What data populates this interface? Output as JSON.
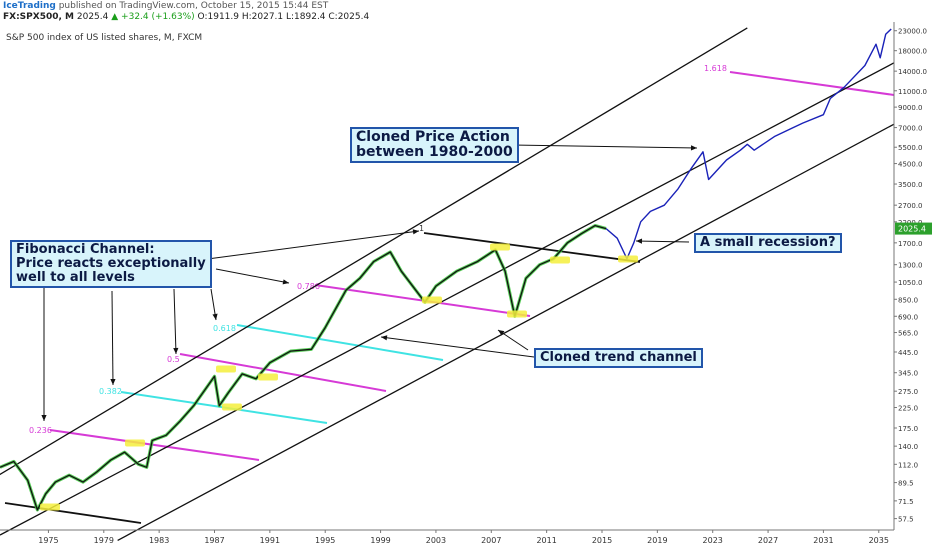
{
  "header": {
    "brand": "IceTrading",
    "published": " published on TradingView.com, October 15, 2015 15:44 EST",
    "symbol": "FX:SPX500, M",
    "last": "2025.4",
    "change": "+32.4 (+1.63%)",
    "ohlc": "O:1911.9 H:2027.1 L:1892.4 C:2025.4"
  },
  "chart_data": {
    "type": "line",
    "title": "S&P 500 index of US listed shares, M, FXCM",
    "y_scale": "log",
    "x_tick_labels": [
      "1975",
      "1979",
      "1983",
      "1987",
      "1991",
      "1995",
      "1999",
      "2003",
      "2007",
      "2011",
      "2015",
      "2019",
      "2023",
      "2027",
      "2031",
      "2035"
    ],
    "y_tick_labels": [
      "23000.0",
      "18000.0",
      "14000.0",
      "11000.0",
      "9000.0",
      "7000.0",
      "5500.0",
      "4500.0",
      "3500.0",
      "2700.0",
      "2200.0",
      "1700.0",
      "1300.0",
      "1050.0",
      "850.0",
      "690.0",
      "565.0",
      "445.0",
      "345.0",
      "275.0",
      "225.0",
      "175.0",
      "140.0",
      "112.0",
      "89.5",
      "71.5",
      "57.5"
    ],
    "last_price_label": "2025.4",
    "series": [
      {
        "color": "#111111",
        "points": [
          [
            1972.0,
            108
          ],
          [
            1973.0,
            116
          ],
          [
            1974.0,
            92
          ],
          [
            1974.7,
            64
          ],
          [
            1975.3,
            78
          ],
          [
            1976.0,
            90
          ],
          [
            1977.0,
            98
          ],
          [
            1978.0,
            90
          ],
          [
            1979.0,
            102
          ],
          [
            1980.0,
            118
          ],
          [
            1981.0,
            130
          ],
          [
            1982.0,
            112
          ],
          [
            1982.6,
            108
          ],
          [
            1983.0,
            150
          ],
          [
            1984.0,
            160
          ],
          [
            1985.0,
            190
          ],
          [
            1986.0,
            230
          ],
          [
            1987.5,
            330
          ],
          [
            1987.85,
            230
          ],
          [
            1988.5,
            270
          ],
          [
            1989.5,
            340
          ],
          [
            1990.5,
            320
          ],
          [
            1991.5,
            390
          ],
          [
            1993.0,
            450
          ],
          [
            1994.5,
            460
          ],
          [
            1995.5,
            600
          ],
          [
            1997.0,
            950
          ],
          [
            1998.0,
            1100
          ],
          [
            1999.0,
            1350
          ],
          [
            2000.2,
            1520
          ],
          [
            2001.0,
            1200
          ],
          [
            2002.7,
            820
          ],
          [
            2003.5,
            1000
          ],
          [
            2005.0,
            1200
          ],
          [
            2006.5,
            1350
          ],
          [
            2007.8,
            1560
          ],
          [
            2008.5,
            1200
          ],
          [
            2009.2,
            690
          ],
          [
            2010.0,
            1100
          ],
          [
            2011.0,
            1300
          ],
          [
            2012.0,
            1400
          ],
          [
            2013.0,
            1700
          ],
          [
            2014.0,
            1900
          ],
          [
            2015.0,
            2100
          ],
          [
            2015.8,
            2025
          ]
        ]
      },
      {
        "color": "#1a22b8",
        "points": [
          [
            2015.8,
            2025
          ],
          [
            2016.6,
            1800
          ],
          [
            2017.3,
            1400
          ],
          [
            2017.8,
            1700
          ],
          [
            2018.3,
            2200
          ],
          [
            2019.0,
            2500
          ],
          [
            2020.0,
            2700
          ],
          [
            2021.0,
            3300
          ],
          [
            2022.0,
            4300
          ],
          [
            2022.8,
            5200
          ],
          [
            2023.2,
            3700
          ],
          [
            2024.5,
            4700
          ],
          [
            2025.5,
            5300
          ],
          [
            2026.0,
            5700
          ],
          [
            2026.5,
            5300
          ],
          [
            2028.0,
            6300
          ],
          [
            2030.0,
            7400
          ],
          [
            2031.5,
            8200
          ],
          [
            2032.0,
            10000
          ],
          [
            2033.0,
            11500
          ],
          [
            2034.5,
            15000
          ],
          [
            2035.3,
            19500
          ],
          [
            2035.6,
            16500
          ],
          [
            2036.0,
            22000
          ],
          [
            2036.4,
            23500
          ]
        ]
      }
    ],
    "fibonacci_levels": [
      {
        "label": "1",
        "color": "#333333"
      },
      {
        "label": "0.786",
        "color": "#d63ad6"
      },
      {
        "label": "0.618",
        "color": "#3fe3e3"
      },
      {
        "label": "0.5",
        "color": "#d63ad6"
      },
      {
        "label": "0.382",
        "color": "#3fe3e3"
      },
      {
        "label": "0.236",
        "color": "#d63ad6"
      },
      {
        "label": "1.618",
        "color": "#d63ad6"
      }
    ],
    "annotations": [
      "Fibonacci Channel:\nPrice reacts exceptionally\nwell to all levels",
      "Cloned Price Action\nbetween 1980-2000",
      "A small recession?",
      "Cloned trend channel"
    ],
    "grid": false
  }
}
